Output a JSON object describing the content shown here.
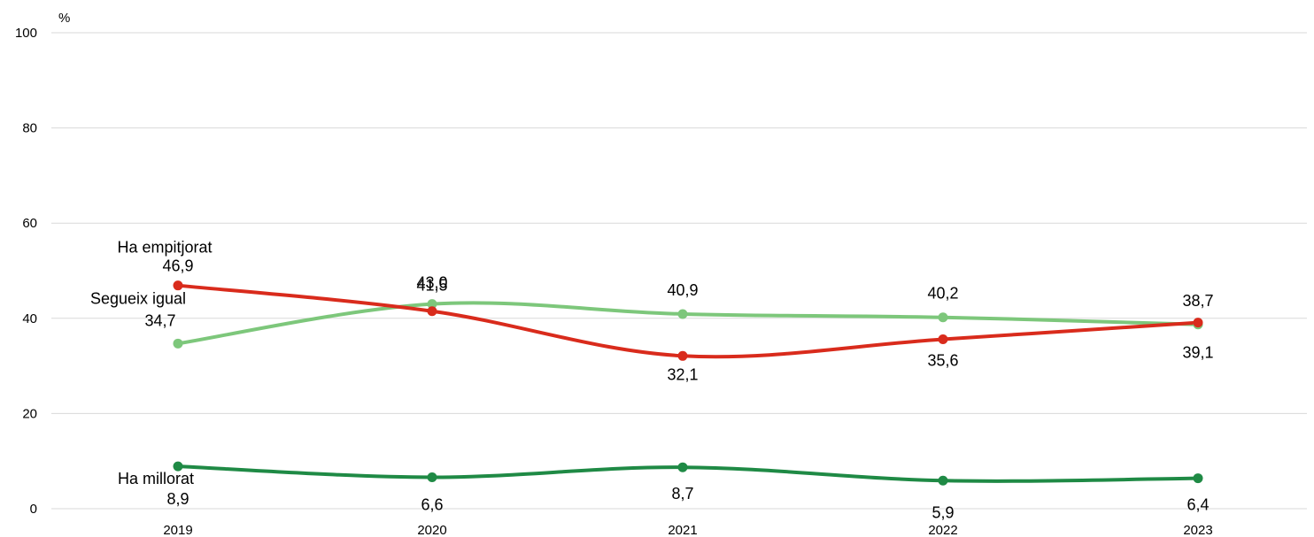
{
  "chart_data": {
    "type": "line",
    "ylabel": "%",
    "ylim": [
      0,
      100
    ],
    "yticks": [
      0,
      20,
      40,
      60,
      80,
      100
    ],
    "categories": [
      "2019",
      "2020",
      "2021",
      "2022",
      "2023"
    ],
    "grid": true,
    "legend": "inline series labels next to first point",
    "series": [
      {
        "name": "Ha empitjorat",
        "values": [
          46.9,
          41.5,
          32.1,
          35.6,
          39.1
        ],
        "color": "#d92b1c"
      },
      {
        "name": "Segueix igual",
        "values": [
          34.7,
          43.0,
          40.9,
          40.2,
          38.7
        ],
        "color": "#7dc77b"
      },
      {
        "name": "Ha millorat",
        "values": [
          8.9,
          6.6,
          8.7,
          5.9,
          6.4
        ],
        "color": "#1f8a45"
      }
    ],
    "data_labels": [
      [
        "46,9",
        "41,5",
        "32,1",
        "35,6",
        "39,1"
      ],
      [
        "34,7",
        "43,0",
        "40,9",
        "40,2",
        "38,7"
      ],
      [
        "8,9",
        "6,6",
        "8,7",
        "5,9",
        "6,4"
      ]
    ]
  }
}
